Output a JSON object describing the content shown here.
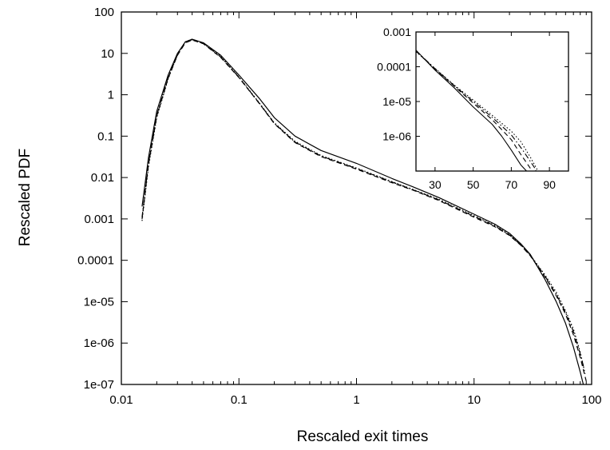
{
  "chart_data": [
    {
      "type": "line",
      "xlabel": "Rescaled exit times",
      "ylabel": "Rescaled PDF",
      "xscale": "log",
      "yscale": "log",
      "xlim": [
        0.01,
        100
      ],
      "ylim": [
        1e-07,
        100
      ],
      "x_ticks": [
        "0.01",
        "0.1",
        "1",
        "10",
        "100"
      ],
      "y_ticks": [
        "1e-07",
        "1e-06",
        "1e-05",
        "0.0001",
        "0.001",
        "0.01",
        "0.1",
        "1",
        "10",
        "100"
      ],
      "grid": false,
      "legend": "none",
      "series": [
        {
          "style": "solid",
          "color": "#000000",
          "points": [
            [
              0.015,
              0.002
            ],
            [
              0.017,
              0.03
            ],
            [
              0.02,
              0.4
            ],
            [
              0.025,
              3
            ],
            [
              0.03,
              10
            ],
            [
              0.035,
              19
            ],
            [
              0.04,
              22
            ],
            [
              0.05,
              18
            ],
            [
              0.07,
              9
            ],
            [
              0.1,
              3
            ],
            [
              0.15,
              0.8
            ],
            [
              0.2,
              0.28
            ],
            [
              0.3,
              0.1
            ],
            [
              0.5,
              0.045
            ],
            [
              1,
              0.022
            ],
            [
              2,
              0.0095
            ],
            [
              3,
              0.006
            ],
            [
              5,
              0.0033
            ],
            [
              10,
              0.0013
            ],
            [
              15,
              0.00075
            ],
            [
              20,
              0.00045
            ],
            [
              25,
              0.00025
            ],
            [
              30,
              0.00014
            ],
            [
              40,
              3.5e-05
            ],
            [
              50,
              1e-05
            ],
            [
              60,
              3e-06
            ],
            [
              70,
              8e-07
            ],
            [
              80,
              2e-07
            ],
            [
              85,
              1e-07
            ]
          ]
        },
        {
          "style": "dashed",
          "color": "#000000",
          "points": [
            [
              0.015,
              0.001
            ],
            [
              0.017,
              0.02
            ],
            [
              0.02,
              0.3
            ],
            [
              0.025,
              2.5
            ],
            [
              0.03,
              9
            ],
            [
              0.035,
              18
            ],
            [
              0.04,
              21
            ],
            [
              0.05,
              17
            ],
            [
              0.07,
              8
            ],
            [
              0.1,
              2.6
            ],
            [
              0.15,
              0.6
            ],
            [
              0.2,
              0.2
            ],
            [
              0.3,
              0.07
            ],
            [
              0.5,
              0.032
            ],
            [
              1,
              0.016
            ],
            [
              2,
              0.0075
            ],
            [
              3,
              0.005
            ],
            [
              5,
              0.0028
            ],
            [
              10,
              0.0011
            ],
            [
              15,
              0.00065
            ],
            [
              20,
              0.0004
            ],
            [
              25,
              0.00023
            ],
            [
              30,
              0.00013
            ],
            [
              40,
              4e-05
            ],
            [
              50,
              1.4e-05
            ],
            [
              60,
              5e-06
            ],
            [
              70,
              1.6e-06
            ],
            [
              80,
              4.5e-07
            ],
            [
              90,
              1.2e-07
            ]
          ]
        },
        {
          "style": "dotted",
          "color": "#000000",
          "points": [
            [
              0.015,
              0.0009
            ],
            [
              0.017,
              0.018
            ],
            [
              0.02,
              0.28
            ],
            [
              0.025,
              2.4
            ],
            [
              0.03,
              9.5
            ],
            [
              0.035,
              19
            ],
            [
              0.04,
              22
            ],
            [
              0.05,
              17.5
            ],
            [
              0.07,
              8.5
            ],
            [
              0.1,
              2.7
            ],
            [
              0.15,
              0.62
            ],
            [
              0.2,
              0.21
            ],
            [
              0.3,
              0.075
            ],
            [
              0.5,
              0.034
            ],
            [
              1,
              0.017
            ],
            [
              2,
              0.008
            ],
            [
              3,
              0.0052
            ],
            [
              5,
              0.003
            ],
            [
              10,
              0.0012
            ],
            [
              15,
              0.0007
            ],
            [
              20,
              0.00042
            ],
            [
              25,
              0.00024
            ],
            [
              30,
              0.000135
            ],
            [
              40,
              4.5e-05
            ],
            [
              50,
              1.7e-05
            ],
            [
              60,
              6e-06
            ],
            [
              70,
              2.2e-06
            ],
            [
              80,
              6e-07
            ],
            [
              88,
              1.8e-07
            ]
          ]
        },
        {
          "style": "dash-dot",
          "color": "#000000",
          "points": [
            [
              0.015,
              0.0011
            ],
            [
              0.017,
              0.022
            ],
            [
              0.02,
              0.32
            ],
            [
              0.025,
              2.6
            ],
            [
              0.03,
              9.2
            ],
            [
              0.035,
              18.5
            ],
            [
              0.04,
              21.5
            ],
            [
              0.05,
              17.2
            ],
            [
              0.07,
              8.2
            ],
            [
              0.1,
              2.65
            ],
            [
              0.15,
              0.61
            ],
            [
              0.2,
              0.205
            ],
            [
              0.3,
              0.072
            ],
            [
              0.5,
              0.033
            ],
            [
              1,
              0.0165
            ],
            [
              2,
              0.0078
            ],
            [
              3,
              0.0051
            ],
            [
              5,
              0.0029
            ],
            [
              10,
              0.00115
            ],
            [
              15,
              0.00068
            ],
            [
              20,
              0.00041
            ],
            [
              25,
              0.000235
            ],
            [
              30,
              0.000132
            ],
            [
              40,
              4.2e-05
            ],
            [
              50,
              1.5e-05
            ],
            [
              60,
              5.5e-06
            ],
            [
              70,
              1.9e-06
            ],
            [
              80,
              5.5e-07
            ],
            [
              86,
              2.5e-07
            ]
          ]
        }
      ]
    },
    {
      "type": "line",
      "xscale": "linear",
      "yscale": "log",
      "xlim": [
        20,
        100
      ],
      "ylim": [
        1e-07,
        0.001
      ],
      "x_ticks": [
        "30",
        "50",
        "70",
        "90"
      ],
      "y_ticks": [
        "1e-06",
        "1e-05",
        "0.0001",
        "0.001"
      ],
      "grid": false,
      "legend": "none",
      "series": [
        {
          "style": "solid",
          "color": "#000000",
          "points": [
            [
              20,
              0.0003
            ],
            [
              30,
              8e-05
            ],
            [
              40,
              2.5e-05
            ],
            [
              50,
              7e-06
            ],
            [
              60,
              2.2e-06
            ],
            [
              65,
              1e-06
            ],
            [
              70,
              4e-07
            ],
            [
              75,
              1.5e-07
            ],
            [
              78,
              1e-07
            ]
          ]
        },
        {
          "style": "dashed",
          "color": "#000000",
          "points": [
            [
              20,
              0.00028
            ],
            [
              30,
              8.5e-05
            ],
            [
              40,
              2.8e-05
            ],
            [
              50,
              9e-06
            ],
            [
              60,
              3e-06
            ],
            [
              70,
              8e-07
            ],
            [
              75,
              3e-07
            ],
            [
              80,
              1.2e-07
            ],
            [
              81,
              1e-07
            ]
          ]
        },
        {
          "style": "dotted",
          "color": "#000000",
          "points": [
            [
              20,
              0.00027
            ],
            [
              30,
              9e-05
            ],
            [
              40,
              3e-05
            ],
            [
              50,
              1.1e-05
            ],
            [
              60,
              4e-06
            ],
            [
              70,
              1.4e-06
            ],
            [
              75,
              7e-07
            ],
            [
              80,
              2.5e-07
            ],
            [
              84,
              1e-07
            ]
          ]
        },
        {
          "style": "dash-dot",
          "color": "#000000",
          "points": [
            [
              20,
              0.00029
            ],
            [
              30,
              8.8e-05
            ],
            [
              40,
              2.9e-05
            ],
            [
              50,
              1e-05
            ],
            [
              60,
              3.5e-06
            ],
            [
              70,
              1.1e-06
            ],
            [
              76,
              4e-07
            ],
            [
              82,
              1.3e-07
            ],
            [
              83,
              1e-07
            ]
          ]
        }
      ]
    }
  ]
}
